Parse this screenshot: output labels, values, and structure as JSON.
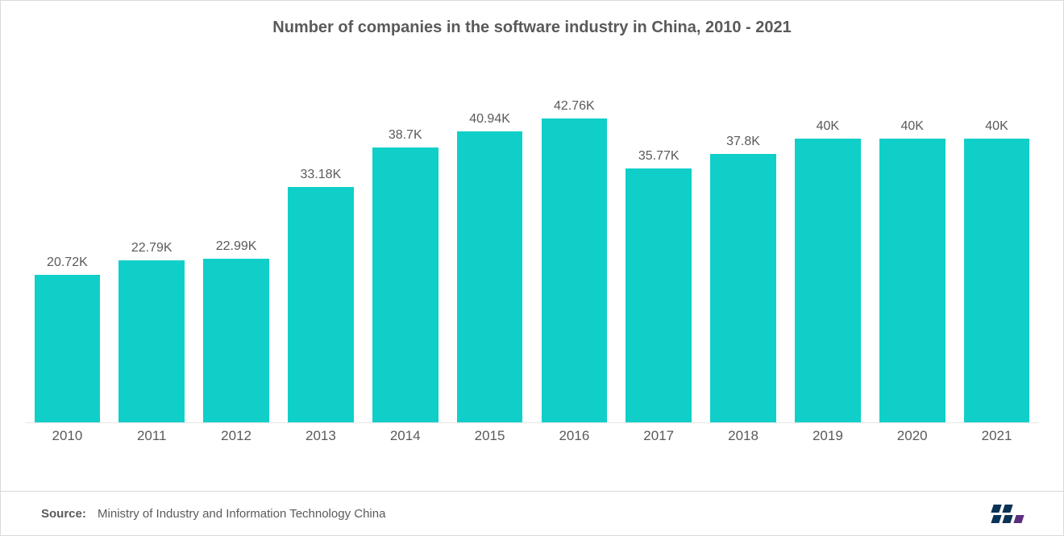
{
  "title": "Number of companies in the software industry in China, 2010 - 2021",
  "chart": {
    "type": "bar",
    "categories": [
      "2010",
      "2011",
      "2012",
      "2013",
      "2014",
      "2015",
      "2016",
      "2017",
      "2018",
      "2019",
      "2020",
      "2021"
    ],
    "values": [
      20.72,
      22.79,
      22.99,
      33.18,
      38.7,
      40.94,
      42.76,
      35.77,
      37.8,
      40,
      40,
      40
    ],
    "value_labels": [
      "20.72K",
      "22.79K",
      "22.99K",
      "33.18K",
      "38.7K",
      "40.94K",
      "42.76K",
      "35.77K",
      "37.8K",
      "40K",
      "40K",
      "40K"
    ],
    "bar_color": "#10cfc9",
    "y_max": 48,
    "label_fontsize": 16,
    "xaxis_fontsize": 17,
    "title_fontsize": 20,
    "title_color": "#5a5a5a",
    "label_color": "#5a5a5a",
    "background_color": "#ffffff",
    "border_color": "#d9d9d9",
    "axis_line_color": "#e6e6e6",
    "bar_width_ratio": 0.78
  },
  "footer": {
    "source_label": "Source:",
    "source_text": "Ministry of Industry and Information Technology China"
  },
  "logo": {
    "colors": [
      "#0a3254",
      "#0a3254",
      "#0a3254",
      "#0a3254",
      "#5b2e7e"
    ]
  }
}
